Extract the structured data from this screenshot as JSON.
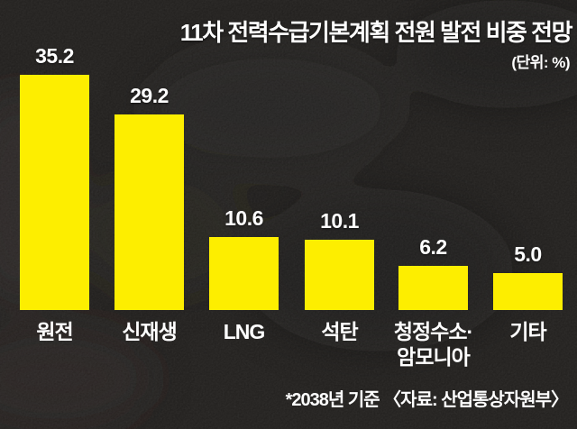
{
  "header": {
    "title": "11차 전력수급기본계획 전원 발전 비중 전망",
    "unit": "(단위: %)"
  },
  "chart_data": {
    "type": "bar",
    "title": "11차 전력수급기본계획 전원 발전 비중 전망",
    "unit_label": "(단위: %)",
    "categories": [
      "원전",
      "신재생",
      "LNG",
      "석탄",
      "청정수소·\n암모니아",
      "기타"
    ],
    "values": [
      35.2,
      29.2,
      10.6,
      10.1,
      6.2,
      5.0
    ],
    "value_labels": [
      "35.2",
      "29.2",
      "10.6",
      "10.1",
      "6.2",
      "5.0"
    ],
    "ylim": [
      0,
      40
    ],
    "grid": false,
    "legend": "none",
    "bar_color": "#fdee00",
    "background_color": "#1d1b19",
    "text_color": "#ffffff",
    "note": "*2038년 기준 〈자료: 산업통상자원부〉"
  },
  "footer": {
    "note": "*2038년 기준 〈자료: 산업통상자원부〉"
  }
}
